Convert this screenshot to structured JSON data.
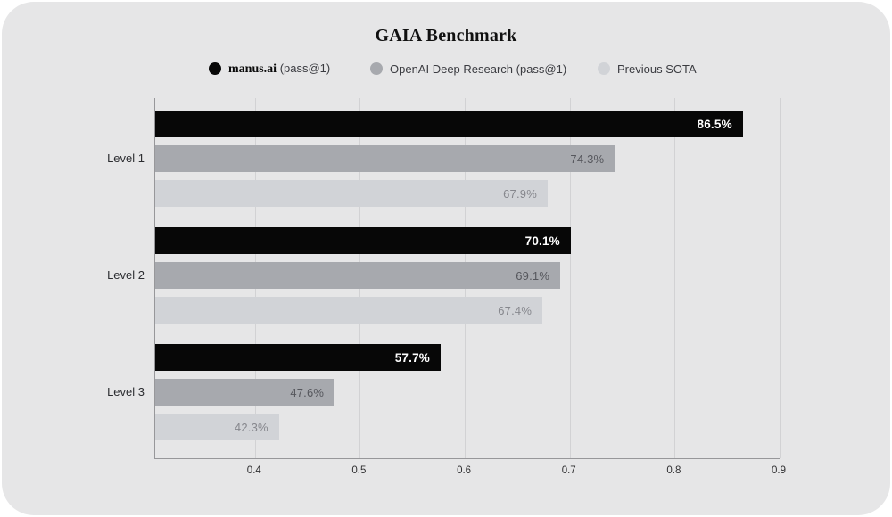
{
  "title": "GAIA Benchmark",
  "colors": {
    "card_background": "#e6e6e7",
    "axis_line": "#97979a",
    "gridline": "#d2d2d4",
    "series_black": "#070707",
    "series_gray": "#a7a9ae",
    "series_light": "#d1d3d7"
  },
  "legend": [
    {
      "label": "manus.ai",
      "suffix": " (pass@1)",
      "color": "#070707"
    },
    {
      "label": "OpenAI Deep Research (pass@1)",
      "suffix": "",
      "color": "#a7a9ae"
    },
    {
      "label": "Previous SOTA",
      "suffix": "",
      "color": "#d1d3d7"
    }
  ],
  "chart_data": {
    "type": "bar",
    "orientation": "horizontal",
    "title": "GAIA Benchmark",
    "xlabel": "",
    "ylabel": "",
    "categories": [
      "Level 1",
      "Level 2",
      "Level 3"
    ],
    "series": [
      {
        "name": "manus.ai (pass@1)",
        "color": "#070707",
        "label_color": "#ffffff",
        "values": [
          0.865,
          0.701,
          0.577
        ],
        "labels": [
          "86.5%",
          "70.1%",
          "57.7%"
        ]
      },
      {
        "name": "OpenAI Deep Research (pass@1)",
        "color": "#a7a9ae",
        "label_color": "#56575d",
        "values": [
          0.743,
          0.691,
          0.476
        ],
        "labels": [
          "74.3%",
          "69.1%",
          "47.6%"
        ]
      },
      {
        "name": "Previous SOTA",
        "color": "#d1d3d7",
        "label_color": "#86878d",
        "values": [
          0.679,
          0.674,
          0.423
        ],
        "labels": [
          "67.9%",
          "67.4%",
          "42.3%"
        ]
      }
    ],
    "x_axis": {
      "xlim": [
        0.305,
        0.9
      ],
      "ticks": [
        0.4,
        0.5,
        0.6,
        0.7,
        0.8,
        0.9
      ],
      "tick_labels": [
        "0.4",
        "0.5",
        "0.6",
        "0.7",
        "0.8",
        "0.9"
      ]
    },
    "grid": true,
    "legend_position": "top"
  }
}
